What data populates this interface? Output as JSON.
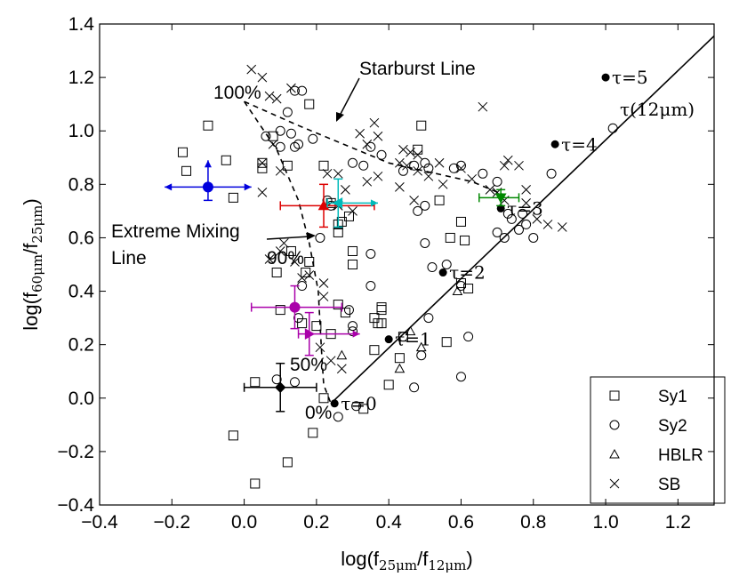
{
  "chart_data": {
    "type": "scatter",
    "xlabel": "log(f25μm/f12μm)",
    "ylabel": "log(f60μm/f25μm)",
    "xlim": [
      -0.4,
      1.3
    ],
    "ylim": [
      -0.4,
      1.4
    ],
    "x_ticks": [
      -0.4,
      -0.2,
      0.0,
      0.2,
      0.4,
      0.6,
      0.8,
      1.0,
      1.2
    ],
    "y_ticks": [
      -0.4,
      -0.2,
      0.0,
      0.2,
      0.4,
      0.6,
      0.8,
      1.0,
      1.2,
      1.4
    ],
    "grid": false,
    "legend_position": "bottom-right",
    "series": [
      {
        "name": "Sy1",
        "marker": "square",
        "points": [
          [
            -0.17,
            0.92
          ],
          [
            -0.16,
            0.85
          ],
          [
            -0.1,
            1.02
          ],
          [
            -0.05,
            0.89
          ],
          [
            -0.03,
            0.75
          ],
          [
            0.05,
            0.88
          ],
          [
            0.05,
            0.86
          ],
          [
            0.08,
            0.98
          ],
          [
            0.12,
            0.87
          ],
          [
            0.18,
            1.1
          ],
          [
            0.22,
            0.87
          ],
          [
            0.24,
            0.73
          ],
          [
            0.26,
            0.65
          ],
          [
            0.26,
            0.62
          ],
          [
            0.27,
            0.66
          ],
          [
            0.29,
            0.68
          ],
          [
            0.3,
            0.55
          ],
          [
            0.3,
            0.5
          ],
          [
            0.13,
            0.55
          ],
          [
            0.18,
            0.51
          ],
          [
            0.17,
            0.47
          ],
          [
            0.09,
            0.47
          ],
          [
            0.1,
            0.33
          ],
          [
            0.16,
            0.28
          ],
          [
            0.2,
            0.27
          ],
          [
            0.24,
            0.24
          ],
          [
            0.26,
            0.35
          ],
          [
            0.28,
            0.32
          ],
          [
            0.36,
            0.3
          ],
          [
            0.37,
            0.28
          ],
          [
            0.38,
            0.28
          ],
          [
            0.38,
            0.33
          ],
          [
            0.38,
            0.34
          ],
          [
            0.44,
            0.23
          ],
          [
            0.43,
            0.15
          ],
          [
            0.4,
            0.05
          ],
          [
            0.33,
            -0.04
          ],
          [
            0.36,
            0.18
          ],
          [
            0.48,
            0.93
          ],
          [
            0.49,
            1.02
          ],
          [
            0.54,
            0.74
          ],
          [
            0.6,
            0.66
          ],
          [
            0.61,
            0.59
          ],
          [
            0.6,
            0.43
          ],
          [
            0.62,
            0.41
          ],
          [
            0.56,
            0.21
          ],
          [
            0.57,
            0.6
          ],
          [
            0.19,
            -0.13
          ],
          [
            0.22,
            0.0
          ],
          [
            -0.03,
            -0.14
          ],
          [
            0.03,
            -0.32
          ],
          [
            0.12,
            -0.24
          ],
          [
            0.03,
            0.06
          ]
        ]
      },
      {
        "name": "Sy2",
        "marker": "circle",
        "points": [
          [
            0.06,
            0.98
          ],
          [
            0.1,
            1.0
          ],
          [
            0.12,
            1.07
          ],
          [
            0.14,
            1.15
          ],
          [
            0.16,
            1.15
          ],
          [
            0.15,
            0.95
          ],
          [
            0.14,
            0.94
          ],
          [
            0.13,
            0.99
          ],
          [
            0.1,
            0.94
          ],
          [
            0.19,
            0.97
          ],
          [
            0.23,
            0.74
          ],
          [
            0.24,
            0.72
          ],
          [
            0.3,
            0.88
          ],
          [
            0.33,
            0.87
          ],
          [
            0.35,
            0.94
          ],
          [
            0.38,
            0.91
          ],
          [
            0.44,
            0.85
          ],
          [
            0.47,
            0.87
          ],
          [
            0.51,
            0.86
          ],
          [
            0.5,
            0.88
          ],
          [
            0.48,
            0.7
          ],
          [
            0.5,
            0.72
          ],
          [
            0.58,
            0.86
          ],
          [
            0.6,
            0.87
          ],
          [
            0.66,
            0.84
          ],
          [
            0.7,
            0.81
          ],
          [
            0.73,
            0.69
          ],
          [
            0.74,
            0.67
          ],
          [
            0.76,
            0.63
          ],
          [
            0.77,
            0.69
          ],
          [
            0.78,
            0.65
          ],
          [
            0.8,
            0.6
          ],
          [
            0.72,
            0.6
          ],
          [
            0.7,
            0.62
          ],
          [
            0.5,
            0.58
          ],
          [
            0.52,
            0.49
          ],
          [
            0.56,
            0.5
          ],
          [
            0.6,
            0.42
          ],
          [
            0.6,
            0.08
          ],
          [
            0.62,
            0.23
          ],
          [
            0.51,
            0.3
          ],
          [
            0.49,
            0.16
          ],
          [
            0.44,
            0.23
          ],
          [
            0.47,
            0.04
          ],
          [
            0.26,
            -0.07
          ],
          [
            0.31,
            -0.03
          ],
          [
            0.09,
            0.07
          ],
          [
            0.14,
            0.06
          ],
          [
            0.16,
            0.42
          ],
          [
            0.15,
            0.3
          ],
          [
            0.21,
            0.6
          ],
          [
            0.29,
            0.33
          ],
          [
            0.3,
            0.25
          ],
          [
            0.35,
            0.54
          ],
          [
            0.35,
            0.42
          ],
          [
            0.85,
            0.84
          ],
          [
            1.02,
            1.01
          ],
          [
            0.3,
            0.27
          ]
        ]
      },
      {
        "name": "HBLR",
        "marker": "triangle",
        "points": [
          [
            0.27,
            0.16
          ],
          [
            0.43,
            0.11
          ],
          [
            0.46,
            0.25
          ],
          [
            0.49,
            0.19
          ],
          [
            0.59,
            0.4
          ]
        ]
      },
      {
        "name": "SB",
        "marker": "x",
        "points": [
          [
            0.02,
            1.23
          ],
          [
            0.05,
            1.2
          ],
          [
            0.07,
            1.13
          ],
          [
            0.09,
            1.12
          ],
          [
            0.13,
            1.16
          ],
          [
            0.08,
            0.95
          ],
          [
            0.05,
            0.88
          ],
          [
            0.1,
            0.85
          ],
          [
            0.05,
            0.77
          ],
          [
            0.32,
            0.99
          ],
          [
            0.34,
            0.95
          ],
          [
            0.37,
            0.98
          ],
          [
            0.36,
            1.03
          ],
          [
            0.44,
            0.93
          ],
          [
            0.46,
            0.92
          ],
          [
            0.48,
            0.91
          ],
          [
            0.43,
            0.88
          ],
          [
            0.45,
            0.87
          ],
          [
            0.48,
            0.85
          ],
          [
            0.51,
            0.83
          ],
          [
            0.55,
            0.8
          ],
          [
            0.54,
            0.88
          ],
          [
            0.6,
            0.86
          ],
          [
            0.63,
            0.82
          ],
          [
            0.66,
            1.09
          ],
          [
            0.68,
            0.78
          ],
          [
            0.7,
            0.77
          ],
          [
            0.72,
            0.74
          ],
          [
            0.73,
            0.89
          ],
          [
            0.76,
            0.87
          ],
          [
            0.72,
            0.87
          ],
          [
            0.78,
            0.73
          ],
          [
            0.81,
            0.67
          ],
          [
            0.84,
            0.65
          ],
          [
            0.88,
            0.64
          ],
          [
            0.78,
            0.78
          ],
          [
            0.34,
            0.81
          ],
          [
            0.37,
            0.83
          ],
          [
            0.26,
            0.72
          ],
          [
            0.3,
            0.7
          ],
          [
            0.23,
            0.84
          ],
          [
            0.26,
            0.84
          ],
          [
            0.28,
            0.78
          ],
          [
            0.43,
            0.79
          ],
          [
            0.47,
            0.74
          ],
          [
            0.1,
            0.55
          ],
          [
            0.11,
            0.58
          ],
          [
            0.07,
            0.52
          ],
          [
            0.14,
            0.51
          ],
          [
            0.16,
            0.45
          ],
          [
            0.18,
            0.46
          ],
          [
            0.22,
            0.43
          ],
          [
            0.21,
            0.19
          ],
          [
            0.24,
            0.14
          ],
          [
            0.27,
            0.11
          ],
          [
            0.22,
            0.38
          ]
        ]
      }
    ],
    "error_points": [
      {
        "x": -0.1,
        "y": 0.79,
        "color": "#0000dd",
        "marker": "circle",
        "xerr": 0.12,
        "yerr_up": 0.1,
        "yerr_down": 0.05,
        "x_arrows": true,
        "y_up_arrow": true
      },
      {
        "x": 0.22,
        "y": 0.72,
        "color": "#dd0000",
        "marker": "triangle",
        "xerr_left": 0.12,
        "xerr_right": 0.14,
        "yerr": 0.08
      },
      {
        "x": 0.26,
        "y": 0.73,
        "color": "#00bbbb",
        "marker": "triangle-left",
        "xerr_left": 0.03,
        "xerr_right": 0.11,
        "yerr": 0.09,
        "x_right_arrow": true
      },
      {
        "x": 0.71,
        "y": 0.75,
        "color": "#008800",
        "marker": "triangle-down",
        "xerr_left": 0.06,
        "xerr_right": 0.05,
        "yerr": 0.03
      },
      {
        "x": 0.14,
        "y": 0.34,
        "color": "#aa00aa",
        "marker": "circle",
        "xerr_left": 0.12,
        "xerr_right": 0.13,
        "yerr": 0.08
      },
      {
        "x": 0.18,
        "y": 0.24,
        "color": "#aa00aa",
        "marker": "triangle-right",
        "xerr_left": 0.03,
        "xerr_right": 0.14,
        "yerr": 0.08,
        "x_right_arrow": true
      },
      {
        "x": 0.1,
        "y": 0.04,
        "color": "#000000",
        "marker": "diamond",
        "xerr": 0.1,
        "yerr": 0.09
      }
    ],
    "starburst_line": [
      [
        0.0,
        1.11
      ],
      [
        0.15,
        1.02
      ],
      [
        0.4,
        0.88
      ],
      [
        0.63,
        0.81
      ],
      [
        0.72,
        0.76
      ]
    ],
    "extreme_mixing_line": [
      [
        0.0,
        1.11
      ],
      [
        0.09,
        0.93
      ],
      [
        0.15,
        0.74
      ],
      [
        0.18,
        0.58
      ],
      [
        0.205,
        0.4
      ],
      [
        0.215,
        0.15
      ],
      [
        0.22,
        0.05
      ],
      [
        0.24,
        -0.02
      ]
    ],
    "tau_line": {
      "points": [
        [
          0.24,
          -0.02
        ],
        [
          1.35,
          1.42
        ]
      ],
      "markers": [
        {
          "x": 0.25,
          "y": -0.02,
          "label": "τ=0"
        },
        {
          "x": 0.4,
          "y": 0.22,
          "label": "τ=1"
        },
        {
          "x": 0.55,
          "y": 0.47,
          "label": "τ=2"
        },
        {
          "x": 0.71,
          "y": 0.71,
          "label": "τ=3"
        },
        {
          "x": 0.86,
          "y": 0.95,
          "label": "τ=4"
        },
        {
          "x": 1.0,
          "y": 1.2,
          "label": "τ=5"
        }
      ]
    },
    "annotations": {
      "starburst": "Starburst Line",
      "mixing_1": "Extreme Mixing",
      "mixing_2": "Line",
      "p100": "100%",
      "p90": "90%",
      "p50": "50%",
      "p0": "0%",
      "tau_unit": "τ(12μm)"
    }
  }
}
